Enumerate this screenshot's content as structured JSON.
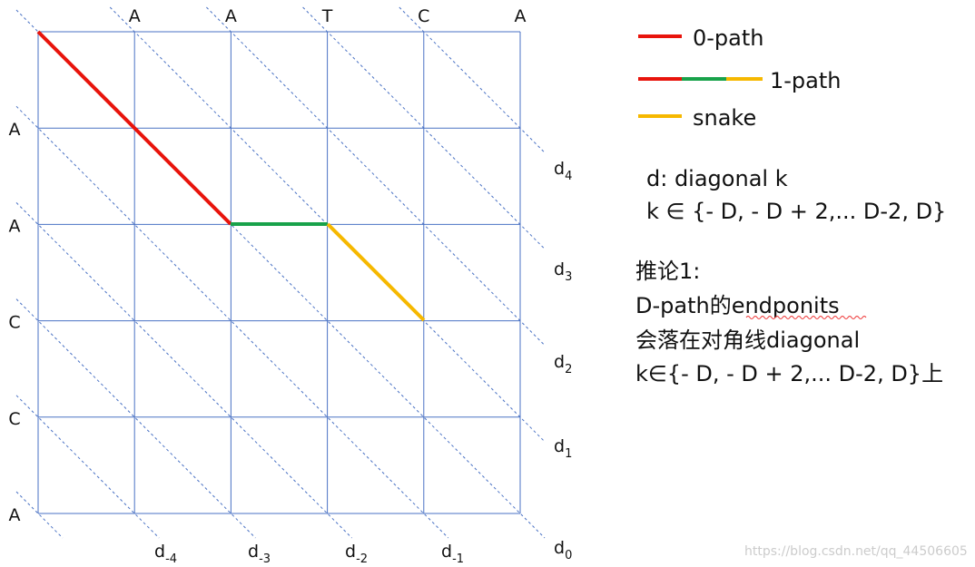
{
  "top_labels": [
    "A",
    "A",
    "T",
    "C",
    "A"
  ],
  "left_labels": [
    "A",
    "A",
    "C",
    "C",
    "A"
  ],
  "right_diagonals": [
    {
      "base": "d",
      "sub": "4"
    },
    {
      "base": "d",
      "sub": "3"
    },
    {
      "base": "d",
      "sub": "2"
    },
    {
      "base": "d",
      "sub": "1"
    },
    {
      "base": "d",
      "sub": "0"
    }
  ],
  "bottom_diagonals": [
    {
      "base": "d",
      "sub": "-4"
    },
    {
      "base": "d",
      "sub": "-3"
    },
    {
      "base": "d",
      "sub": "-2"
    },
    {
      "base": "d",
      "sub": "-1"
    }
  ],
  "legend": [
    "0-path",
    "1-path",
    "snake"
  ],
  "definition": [
    "d: diagonal k",
    "k ∈ {- D, - D + 2,... D-2, D}"
  ],
  "corollary": [
    "推论1:",
    "D-path的endponits",
    "会落在对角线diagonal",
    "k∈{- D, - D + 2,... D-2, D}上"
  ],
  "watermark": "https://blog.csdn.net/qq_44506605"
}
